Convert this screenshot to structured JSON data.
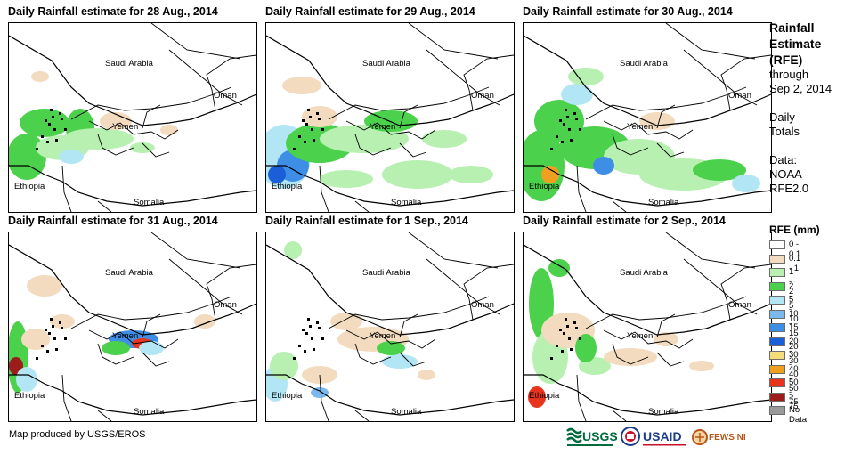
{
  "panels": [
    {
      "title": "Daily Rainfall estimate for 28 Aug., 2014"
    },
    {
      "title": "Daily Rainfall estimate for 29 Aug., 2014"
    },
    {
      "title": "Daily Rainfall estimate for 30 Aug., 2014"
    },
    {
      "title": "Daily Rainfall estimate for 31 Aug., 2014"
    },
    {
      "title": "Daily Rainfall estimate for 1 Sep., 2014"
    },
    {
      "title": "Daily Rainfall estimate for 2 Sep., 2014"
    }
  ],
  "map_labels": {
    "saudi": "Saudi Arabia",
    "oman": "Oman",
    "yemen": "Yemen",
    "ethiopia": "Ethiopia",
    "somalia": "Somalia"
  },
  "sidebar": {
    "title_lines": [
      "Rainfall",
      "Estimate",
      "(RFE)"
    ],
    "through": "through",
    "date": "Sep 2, 2014",
    "daily": "Daily",
    "totals": "Totals",
    "data_label": "Data:",
    "source_1": "NOAA-",
    "source_2": "RFE2.0"
  },
  "legend": {
    "title": "RFE (mm)",
    "items": [
      {
        "label": "0 - 0.1",
        "color": "#ffffff"
      },
      {
        "label": "0.1 - 1",
        "color": "#f2dbbe"
      },
      {
        "label": "1 - 2",
        "color": "#b7f0b1"
      },
      {
        "label": "2 - 5",
        "color": "#4cd14c"
      },
      {
        "label": "5 - 10",
        "color": "#b3e6f5"
      },
      {
        "label": "10 - 15",
        "color": "#7bb8ee"
      },
      {
        "label": "15 - 20",
        "color": "#3f8ee6"
      },
      {
        "label": "20 - 30",
        "color": "#1a5ed8"
      },
      {
        "label": "30 - 40",
        "color": "#f5dc7a"
      },
      {
        "label": "40 - 50",
        "color": "#f0a020"
      },
      {
        "label": "50 - 75",
        "color": "#e8341c"
      },
      {
        "label": "> 75",
        "color": "#9c1c1c"
      },
      {
        "label": "No Data",
        "color": "#9a9a9a"
      }
    ]
  },
  "credit": "Map produced by USGS/EROS",
  "logos": {
    "usgs": "USGS",
    "usaid": "USAID",
    "fewsnet": "FEWS NET"
  }
}
